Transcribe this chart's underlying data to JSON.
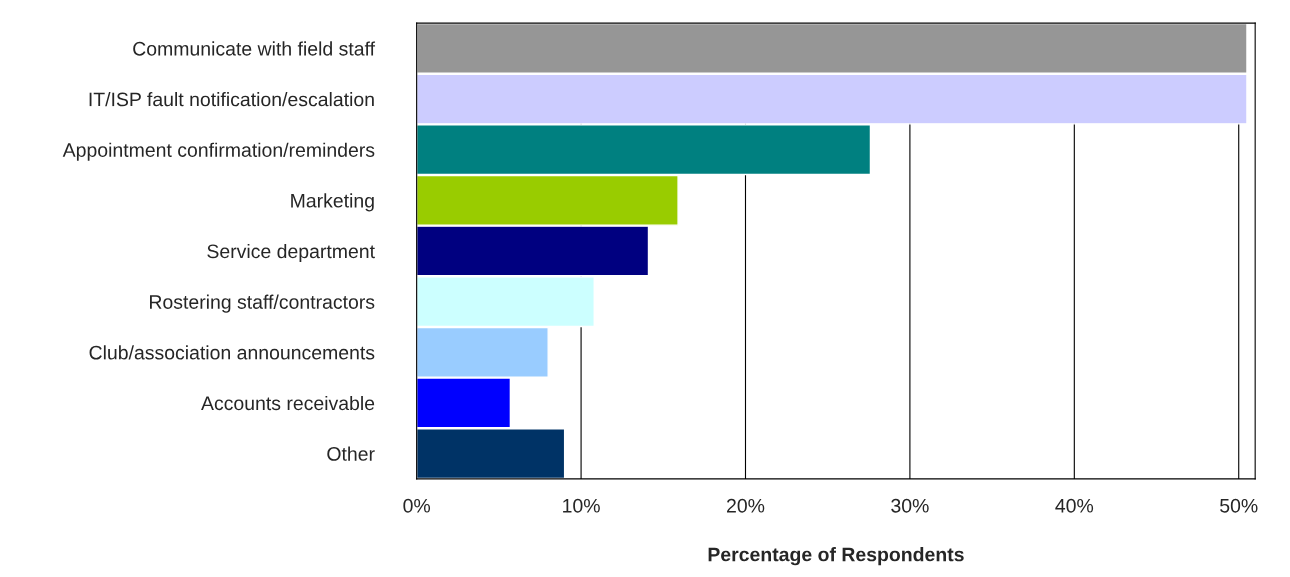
{
  "chart_data": {
    "type": "bar",
    "orientation": "horizontal",
    "xlabel": "Percentage of Respondents",
    "categories": [
      "Communicate with field staff",
      "IT/ISP fault notification/escalation",
      "Appointment confirmation/reminders",
      "Marketing",
      "Service department",
      "Rostering staff/contractors",
      "Club/association announcements",
      "Accounts receivable",
      "Other"
    ],
    "values": [
      50.5,
      50.5,
      27.6,
      15.9,
      14.1,
      10.8,
      8.0,
      5.7,
      9.0
    ],
    "colors": [
      "#969696",
      "#ccccff",
      "#008080",
      "#99cc00",
      "#000080",
      "#ccffff",
      "#99ccff",
      "#0000ff",
      "#003366"
    ],
    "xlim": [
      0,
      51
    ],
    "xticks": [
      {
        "value": 0,
        "label": "0%"
      },
      {
        "value": 10,
        "label": "10%"
      },
      {
        "value": 20,
        "label": "20%"
      },
      {
        "value": 30,
        "label": "30%"
      },
      {
        "value": 40,
        "label": "40%"
      },
      {
        "value": 50,
        "label": "50%"
      }
    ],
    "grid": "x"
  }
}
